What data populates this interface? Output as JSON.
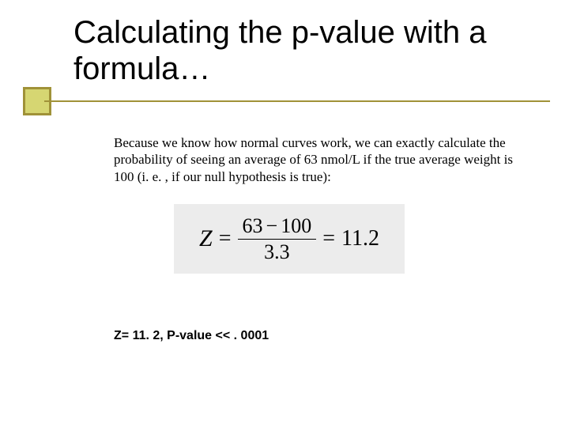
{
  "title": "Calculating the p-value with a formula…",
  "body": "Because we know how normal curves work, we can exactly calculate the probability of seeing an average of 63 nmol/L if the true average weight is 100 (i. e. , if our null hypothesis is true):",
  "formula": {
    "lhs": "Z",
    "numerator_a": "63",
    "numerator_op": "−",
    "numerator_b": "100",
    "denominator": "3.3",
    "rhs": "11.2",
    "background_color": "#ececec"
  },
  "result": "Z= 11. 2, P-value << . 0001",
  "colors": {
    "bullet_fill": "#d6d672",
    "bullet_border": "#a09238",
    "underline": "#a09238",
    "text": "#000000",
    "background": "#ffffff"
  },
  "fonts": {
    "title": "Verdana",
    "body": "Times New Roman",
    "result": "Verdana"
  }
}
